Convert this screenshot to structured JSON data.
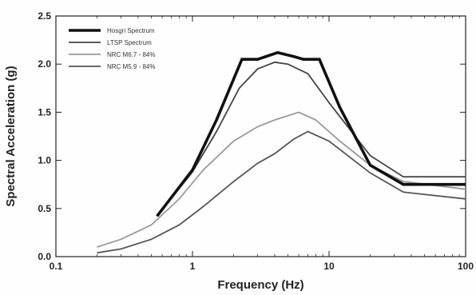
{
  "chart_data": {
    "type": "line",
    "xlabel": "Frequency (Hz)",
    "ylabel": "Spectral Acceleration (g)",
    "xscale": "log",
    "xlim": [
      0.1,
      100
    ],
    "ylim": [
      0.0,
      2.5
    ],
    "x_ticks": [
      "0.1",
      "1",
      "10",
      "100"
    ],
    "y_ticks": [
      "0.0",
      "0.5",
      "1.0",
      "1.5",
      "2.0",
      "2.5"
    ],
    "grid": false,
    "legend_position": "top-left",
    "series": [
      {
        "name": "Hosgri Spectrum",
        "color": "#111111",
        "line_weight": "bold",
        "x": [
          0.55,
          1.0,
          1.5,
          2.3,
          3.0,
          4.2,
          5.5,
          6.5,
          8.5,
          12,
          20,
          35,
          100
        ],
        "y": [
          0.42,
          0.9,
          1.42,
          2.05,
          2.05,
          2.12,
          2.08,
          2.05,
          2.05,
          1.55,
          0.95,
          0.75,
          0.75
        ]
      },
      {
        "name": "LTSP Spectrum",
        "color": "#444444",
        "line_weight": "normal",
        "x": [
          0.55,
          1.0,
          1.5,
          2.2,
          3.0,
          4.0,
          5.0,
          7.0,
          10,
          20,
          35,
          100
        ],
        "y": [
          0.42,
          0.88,
          1.3,
          1.75,
          1.95,
          2.02,
          2.0,
          1.9,
          1.6,
          1.05,
          0.83,
          0.83
        ]
      },
      {
        "name": "NRC M6.7 - 84%",
        "color": "#999999",
        "line_weight": "normal",
        "x": [
          0.2,
          0.3,
          0.5,
          0.8,
          1.2,
          2.0,
          3.0,
          4.0,
          6.0,
          8.0,
          12,
          20,
          35,
          100
        ],
        "y": [
          0.1,
          0.18,
          0.33,
          0.6,
          0.9,
          1.2,
          1.35,
          1.42,
          1.5,
          1.42,
          1.2,
          0.95,
          0.78,
          0.7
        ]
      },
      {
        "name": "NRC M5.9 - 84%",
        "color": "#555555",
        "line_weight": "normal",
        "x": [
          0.2,
          0.3,
          0.5,
          0.8,
          1.2,
          2.0,
          3.0,
          4.0,
          5.5,
          7.0,
          10,
          20,
          35,
          100
        ],
        "y": [
          0.04,
          0.08,
          0.18,
          0.33,
          0.52,
          0.78,
          0.97,
          1.07,
          1.22,
          1.3,
          1.2,
          0.87,
          0.67,
          0.6
        ]
      }
    ]
  }
}
